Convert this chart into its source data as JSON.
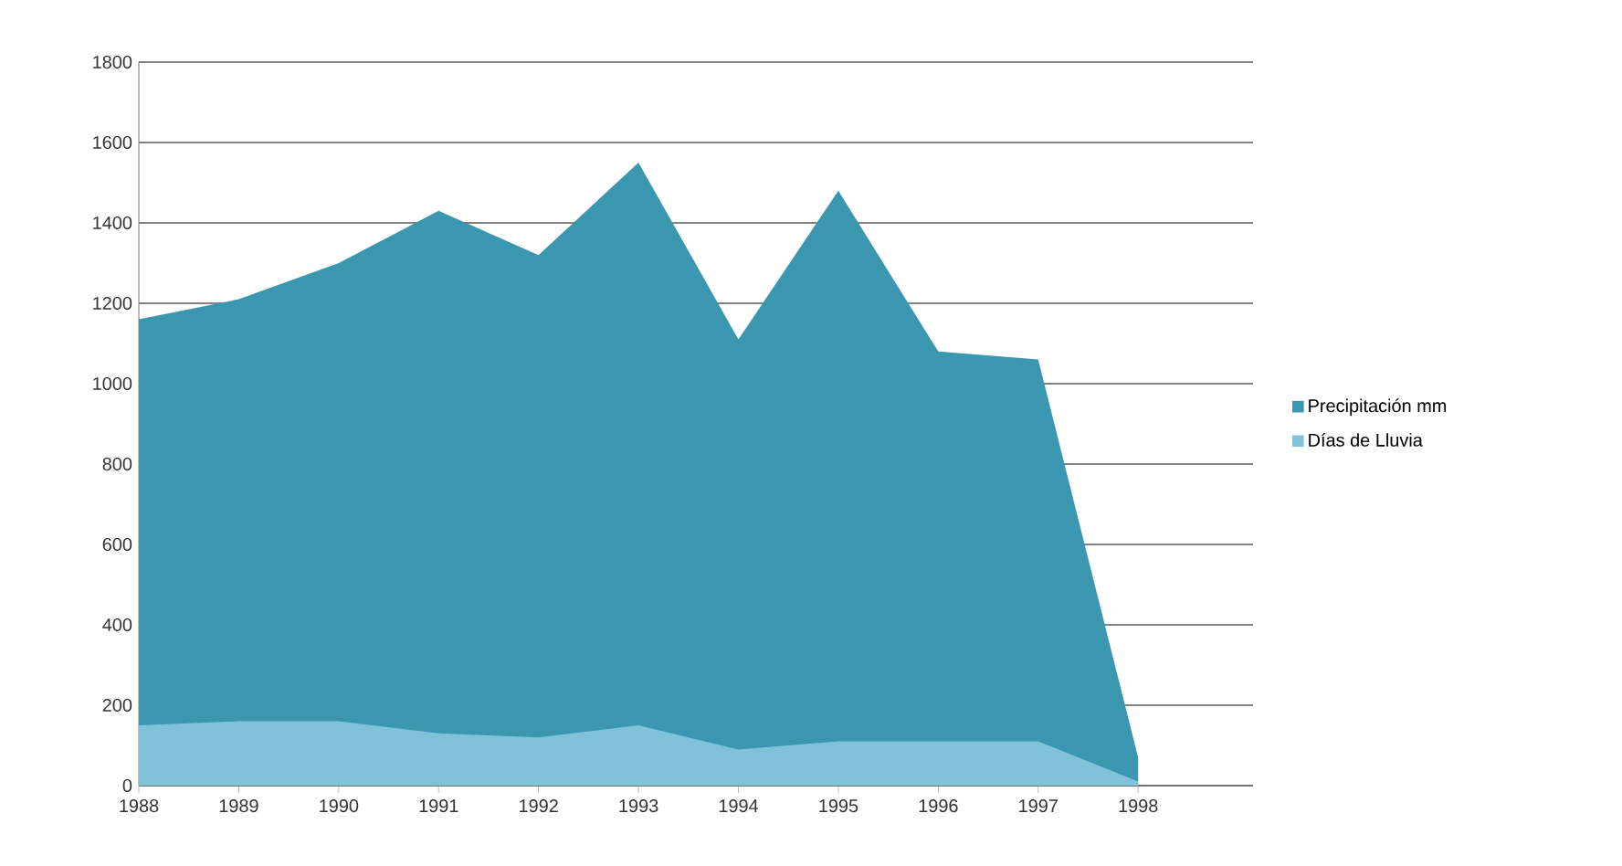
{
  "chart_data": {
    "type": "area",
    "categories": [
      "1988",
      "1989",
      "1990",
      "1991",
      "1992",
      "1993",
      "1994",
      "1995",
      "1996",
      "1997",
      "1998"
    ],
    "series": [
      {
        "name": "Precipitación  mm",
        "color": "#3b97b0",
        "values": [
          1160,
          1210,
          1300,
          1430,
          1320,
          1550,
          1110,
          1480,
          1080,
          1060,
          70
        ]
      },
      {
        "name": "Días de Lluvia",
        "color": "#80c3d8",
        "values": [
          150,
          160,
          160,
          130,
          120,
          150,
          90,
          110,
          110,
          110,
          10
        ]
      }
    ],
    "ylim": [
      0,
      1800
    ],
    "yticks": [
      0,
      200,
      400,
      600,
      800,
      1000,
      1200,
      1400,
      1600,
      1800
    ],
    "grid": "y",
    "legend": "right"
  }
}
